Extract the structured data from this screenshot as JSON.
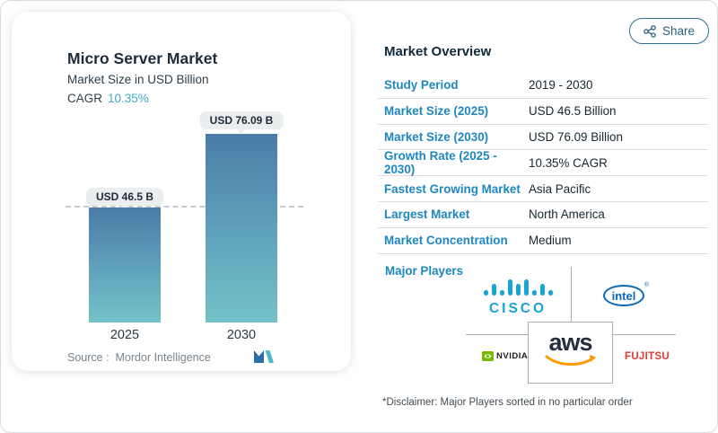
{
  "page": {
    "share": {
      "label": "Share"
    },
    "disclaimer": "*Disclaimer: Major Players sorted in no particular order"
  },
  "chart_card": {
    "title": "Micro Server Market",
    "subtitle": "Market Size in USD Billion",
    "cagr_label": "CAGR",
    "cagr_value": "10.35%",
    "source_label": "Source :",
    "source_value": "Mordor Intelligence"
  },
  "chart_data": {
    "type": "bar",
    "title": "Micro Server Market",
    "ylabel": "Market Size in USD Billion",
    "categories": [
      "2025",
      "2030"
    ],
    "values": [
      46.5,
      76.09
    ],
    "bar_labels": [
      "USD 46.5 B",
      "USD 76.09 B"
    ],
    "cagr_pct": 10.35,
    "reference_line_value": 46.5,
    "ylim": [
      0,
      125
    ],
    "grid": false,
    "legend": "none",
    "bar_color_top": "#4b7ca7",
    "bar_color_bottom": "#73c2c8"
  },
  "overview": {
    "title": "Market Overview",
    "rows": [
      {
        "label": "Study Period",
        "value": "2019 - 2030"
      },
      {
        "label": "Market Size (2025)",
        "value": "USD 46.5 Billion"
      },
      {
        "label": "Market Size (2030)",
        "value": "USD 76.09 Billion"
      },
      {
        "label": "Growth Rate (2025 - 2030)",
        "value": "10.35% CAGR"
      },
      {
        "label": "Fastest Growing Market",
        "value": "Asia Pacific"
      },
      {
        "label": "Largest Market",
        "value": "North America"
      },
      {
        "label": "Market Concentration",
        "value": "Medium"
      }
    ],
    "major_players_label": "Major Players",
    "players": [
      {
        "name": "Cisco",
        "wordmark": "CISCO"
      },
      {
        "name": "Intel",
        "wordmark": "intel"
      },
      {
        "name": "AWS",
        "wordmark": "aws"
      },
      {
        "name": "NVIDIA",
        "wordmark": "NVIDIA"
      },
      {
        "name": "Fujitsu",
        "wordmark": "FUJITSU"
      }
    ]
  },
  "colors": {
    "accent_blue": "#1e87c1",
    "teal": "#43a9c8",
    "navy": "#102a3b",
    "cisco_blue": "#16a3d8",
    "intel_blue": "#0a68b4",
    "nvidia_green": "#76b900",
    "fujitsu_red": "#e03c31",
    "aws_orange": "#ff9900",
    "aws_dark": "#232f3e"
  }
}
